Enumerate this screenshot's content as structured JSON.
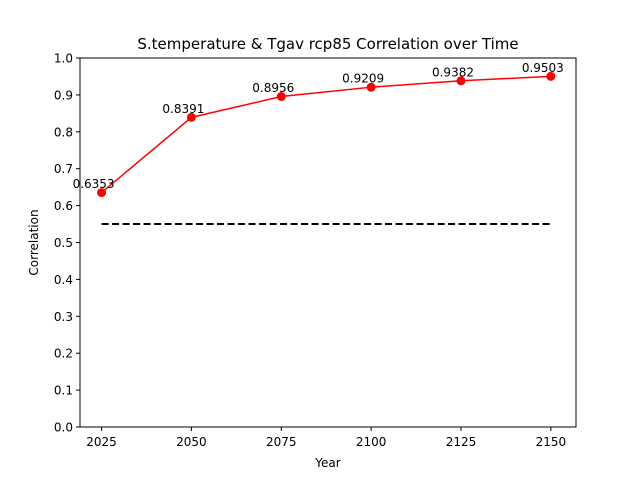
{
  "chart_data": {
    "type": "line",
    "title": "S.temperature & Tgav rcp85 Correlation over Time",
    "xlabel": "Year",
    "ylabel": "Correlation",
    "x": [
      2025,
      2050,
      2075,
      2100,
      2125,
      2150
    ],
    "x_ticks": [
      2025,
      2050,
      2075,
      2100,
      2125,
      2150
    ],
    "y_ticks": [
      "0.0",
      "0.1",
      "0.2",
      "0.3",
      "0.4",
      "0.5",
      "0.6",
      "0.7",
      "0.8",
      "0.9",
      "1.0"
    ],
    "xlim": [
      2019,
      2157
    ],
    "ylim": [
      0.0,
      1.0
    ],
    "grid": false,
    "series": [
      {
        "values": [
          0.6353,
          0.8391,
          0.8956,
          0.9209,
          0.9382,
          0.9503
        ],
        "labels": [
          "0.6353",
          "0.8391",
          "0.8956",
          "0.9209",
          "0.9382",
          "0.9503"
        ],
        "color": "#ff0000",
        "marker": "circle"
      }
    ],
    "reference_line": {
      "y": 0.55,
      "x_range": [
        2025,
        2150
      ],
      "style": "dashed",
      "color": "#000000"
    }
  }
}
